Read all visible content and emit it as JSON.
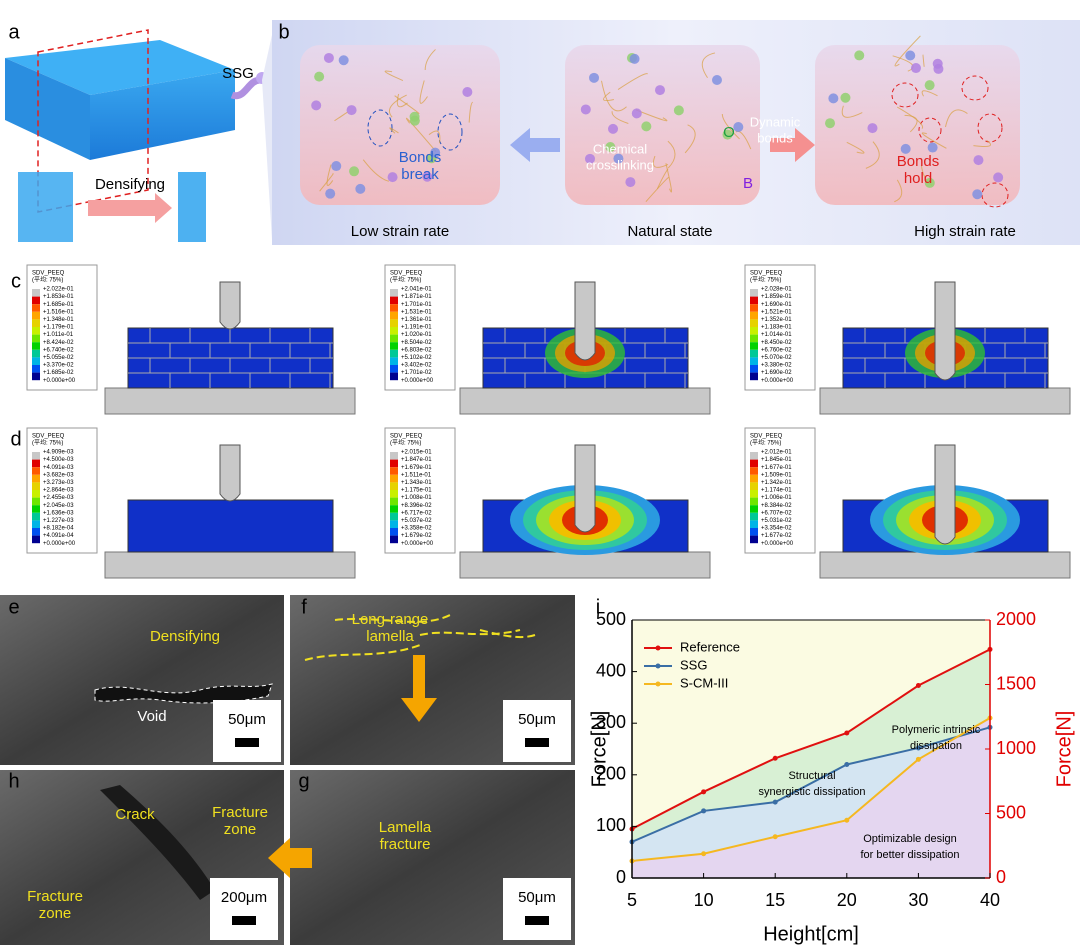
{
  "panel_labels": [
    "a",
    "b",
    "c",
    "d",
    "e",
    "f",
    "g",
    "h",
    "i"
  ],
  "panel_a": {
    "ssg": "SSG",
    "process": "Densifying"
  },
  "panel_b": {
    "bonds_break": [
      "Bonds",
      "break"
    ],
    "crosslinking": [
      "Chemical",
      "crosslinking"
    ],
    "dynamic_bonds": [
      "Dynamic",
      "bonds"
    ],
    "site_o": "O",
    "site_b": "B",
    "bonds_hold": [
      "Bonds",
      "hold"
    ],
    "states": [
      "Low strain rate",
      "Natural state",
      "High strain rate"
    ]
  },
  "panel_c": {
    "legends": [
      {
        "title": "SDV_PEEQ",
        "average": "(平均: 75%)",
        "values": [
          "+2.022e-01",
          "+1.853e-01",
          "+1.685e-01",
          "+1.516e-01",
          "+1.348e-01",
          "+1.179e-01",
          "+1.011e-01",
          "+8.424e-02",
          "+6.740e-02",
          "+5.055e-02",
          "+3.370e-02",
          "+1.685e-02",
          "+0.000e+00"
        ]
      },
      {
        "title": "SDV_PEEQ",
        "average": "(平均: 75%)",
        "values": [
          "+2.041e-01",
          "+1.871e-01",
          "+1.701e-01",
          "+1.531e-01",
          "+1.361e-01",
          "+1.191e-01",
          "+1.020e-01",
          "+8.504e-02",
          "+6.803e-02",
          "+5.102e-02",
          "+3.402e-02",
          "+1.701e-02",
          "+0.000e+00"
        ]
      },
      {
        "title": "SDV_PEEQ",
        "average": "(平均: 75%)",
        "values": [
          "+2.028e-01",
          "+1.859e-01",
          "+1.690e-01",
          "+1.521e-01",
          "+1.352e-01",
          "+1.183e-01",
          "+1.014e-01",
          "+8.450e-02",
          "+6.760e-02",
          "+5.070e-02",
          "+3.380e-02",
          "+1.690e-02",
          "+0.000e+00"
        ]
      }
    ]
  },
  "panel_d": {
    "legends": [
      {
        "title": "SDV_PEEQ",
        "average": "(平均: 75%)",
        "values": [
          "+4.909e-03",
          "+4.500e-03",
          "+4.091e-03",
          "+3.682e-03",
          "+3.273e-03",
          "+2.864e-03",
          "+2.455e-03",
          "+2.045e-03",
          "+1.636e-03",
          "+1.227e-03",
          "+8.182e-04",
          "+4.091e-04",
          "+0.000e+00"
        ]
      },
      {
        "title": "SDV_PEEQ",
        "average": "(平均: 75%)",
        "values": [
          "+2.015e-01",
          "+1.847e-01",
          "+1.679e-01",
          "+1.511e-01",
          "+1.343e-01",
          "+1.175e-01",
          "+1.008e-01",
          "+8.396e-02",
          "+6.717e-02",
          "+5.037e-02",
          "+3.358e-02",
          "+1.679e-02",
          "+0.000e+00"
        ]
      },
      {
        "title": "SDV_PEEQ",
        "average": "(平均: 75%)",
        "values": [
          "+2.012e-01",
          "+1.845e-01",
          "+1.677e-01",
          "+1.509e-01",
          "+1.342e-01",
          "+1.174e-01",
          "+1.006e-01",
          "+8.384e-02",
          "+6.707e-02",
          "+5.031e-02",
          "+3.354e-02",
          "+1.677e-02",
          "+0.000e+00"
        ]
      }
    ]
  },
  "panel_e": {
    "densifying": "Densifying",
    "void": "Void",
    "scale": "50μm"
  },
  "panel_f": {
    "lamella": [
      "Long-range",
      "lamella"
    ],
    "scale": "50μm"
  },
  "panel_g": {
    "fracture": [
      "Lamella",
      "fracture"
    ],
    "scale": "50μm"
  },
  "panel_h": {
    "crack": "Crack",
    "zone_1": [
      "Fracture",
      "zone"
    ],
    "zone_2": [
      "Fracture",
      "zone"
    ],
    "scale": "200μm"
  },
  "chart_data": {
    "type": "line",
    "xlabel": "Height[cm]",
    "ylabel": "Force[N]",
    "y2label": "Force[N]",
    "categories": [
      "5",
      "10",
      "15",
      "20",
      "30",
      "40"
    ],
    "ylim": [
      0,
      500
    ],
    "yticks": [
      0,
      100,
      200,
      300,
      400,
      500
    ],
    "y2lim": [
      0,
      2000
    ],
    "y2ticks": [
      0,
      500,
      1000,
      1500,
      2000
    ],
    "y2color": "#e00000",
    "legend": "upper left",
    "series": [
      {
        "name": "Reference",
        "color": "#e01010",
        "axis": "y2",
        "fill": "#d8f0d4",
        "values": [
          380,
          668,
          928,
          1124,
          1492,
          1772
        ]
      },
      {
        "name": "SSG",
        "color": "#3a6ea5",
        "fill": "#d4e5f2",
        "values": [
          70,
          130,
          147,
          220,
          252,
          292
        ]
      },
      {
        "name": "S-CM-III",
        "color": "#f5b820",
        "fill": "#e4d6f0",
        "values": [
          33,
          47,
          80,
          112,
          230,
          310
        ]
      }
    ],
    "background": "#fbfbe2",
    "annotations": [
      [
        "Polymeric intrinsic",
        "dissipation"
      ],
      [
        "Structural",
        "synergistic dissipation"
      ],
      [
        "Optimizable design",
        "for better dissipation"
      ]
    ]
  }
}
